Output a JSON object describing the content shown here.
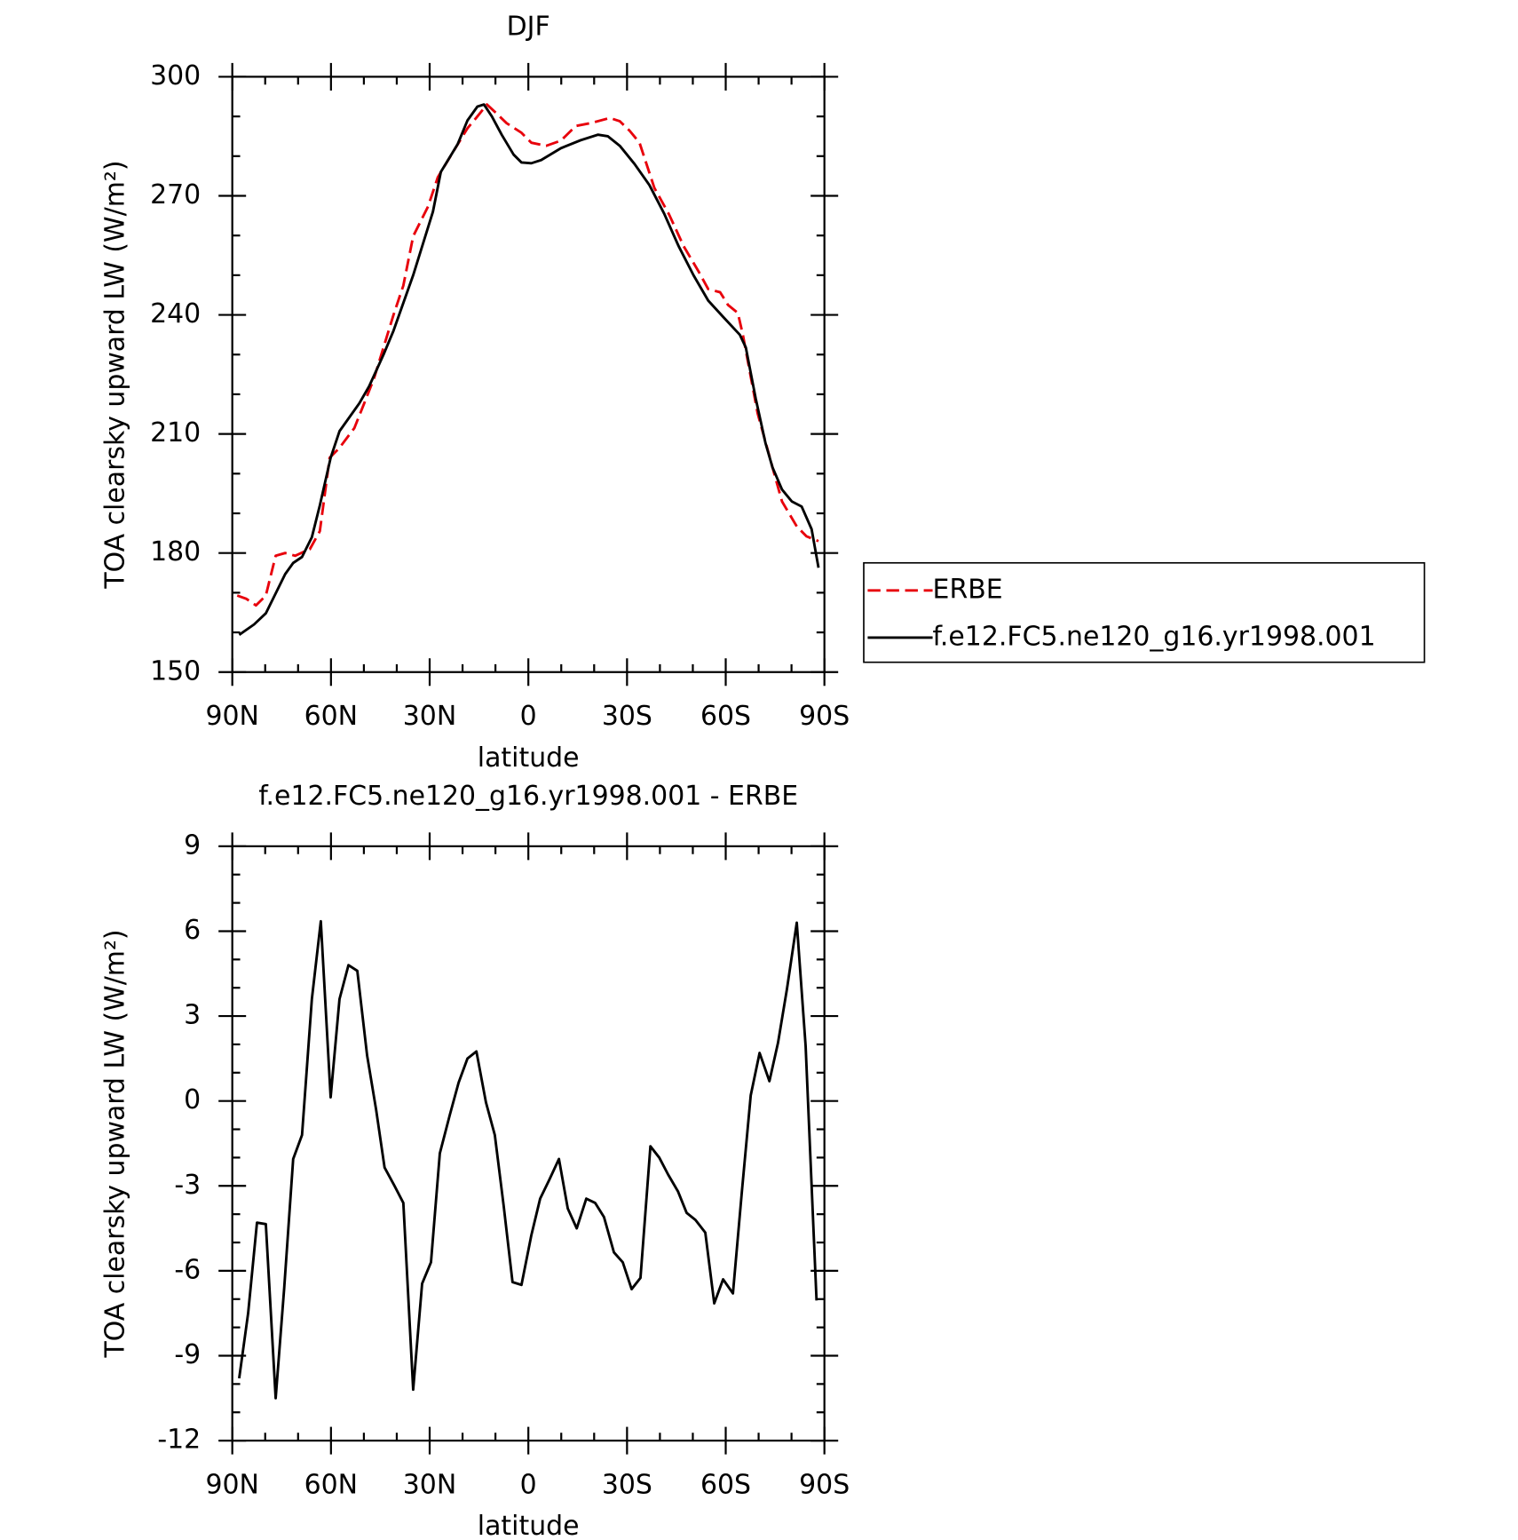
{
  "chart_data": [
    {
      "type": "line",
      "title": "DJF",
      "xlabel": "latitude",
      "ylabel": "TOA clearsky upward LW (W/m²)",
      "xlim": [
        90,
        -90
      ],
      "xticks": [
        {
          "value": 90,
          "label": "90N"
        },
        {
          "value": 60,
          "label": "60N"
        },
        {
          "value": 30,
          "label": "30N"
        },
        0,
        {
          "value": -30,
          "label": "30S"
        },
        {
          "value": -60,
          "label": "60S"
        },
        {
          "value": -90,
          "label": "90S"
        }
      ],
      "minor_xticks": [
        80,
        70,
        50,
        40,
        20,
        10,
        -10,
        -20,
        -40,
        -50,
        -70,
        -80
      ],
      "ylim": [
        150,
        300
      ],
      "yticks": [
        150,
        180,
        210,
        240,
        270,
        300
      ],
      "minor_yticks": [
        160,
        170,
        190,
        200,
        220,
        230,
        250,
        260,
        280,
        290
      ],
      "legend": "right",
      "series": [
        {
          "name": "ERBE",
          "color": "#e8000b",
          "dashed": true,
          "x": [
            88.5,
            85.8,
            82.8,
            79.8,
            76.8,
            73.9,
            70.9,
            66.4,
            63.4,
            60.4,
            57.4,
            52.9,
            49.9,
            46.9,
            41.0,
            38.0,
            35.0,
            30.5,
            27.5,
            23.0,
            18.5,
            15.5,
            12.6,
            9.6,
            6.6,
            2.1,
            -0.9,
            -5.4,
            -9.9,
            -14.4,
            -18.8,
            -24.8,
            -27.8,
            -30.8,
            -33.8,
            -38.3,
            -42.8,
            -47.2,
            -51.7,
            -54.7,
            -58.3,
            -60.7,
            -63.7,
            -65.2,
            -69.7,
            -74.2,
            -77.1,
            -81.6,
            -84.6,
            -88.2
          ],
          "values": [
            169.3,
            168.5,
            166.8,
            169.3,
            179.3,
            180,
            179.3,
            181,
            185.5,
            204,
            206.5,
            211.5,
            217.7,
            224,
            240,
            247.4,
            259.8,
            267.3,
            274.7,
            280.9,
            287,
            290,
            293,
            290.7,
            288.3,
            285.9,
            283.4,
            282.6,
            283.9,
            287.6,
            288.3,
            289.6,
            288.8,
            286.4,
            283.4,
            272,
            265.3,
            257.3,
            251,
            246.5,
            245.7,
            242.5,
            240.5,
            235,
            215.2,
            201.6,
            193,
            186.7,
            184.2,
            183
          ]
        },
        {
          "name": "f.e12.FC5.ne120_g16.yr1998.001",
          "color": "#000000",
          "dashed": false,
          "x": [
            87.9,
            83.4,
            79.8,
            73.9,
            71.5,
            68.8,
            65.8,
            63.4,
            60.1,
            57.4,
            51.4,
            48.4,
            44.0,
            41.0,
            35.0,
            29.0,
            26.6,
            21.5,
            18.5,
            15.5,
            13.5,
            11.1,
            8.1,
            4.5,
            2.1,
            -0.9,
            -3.9,
            -9.9,
            -15.9,
            -21.2,
            -24.2,
            -27.8,
            -32.3,
            -36.8,
            -41.3,
            -45.7,
            -50.2,
            -54.7,
            -59.2,
            -64.3,
            -66.1,
            -69.1,
            -72.1,
            -74.2,
            -77.1,
            -80.1,
            -83.1,
            -86.1,
            -88.2
          ],
          "values": [
            159.4,
            162,
            164.8,
            174.7,
            177.5,
            179,
            184,
            192,
            204,
            210.7,
            217.7,
            222,
            230,
            236,
            250,
            266,
            276,
            283,
            289,
            292.5,
            293,
            290,
            285.4,
            280.4,
            278.4,
            278.2,
            279,
            282,
            284,
            285.4,
            285,
            282.6,
            278,
            272.7,
            265.5,
            257.3,
            250,
            243.6,
            239.5,
            235,
            231.8,
            219,
            207.7,
            201.6,
            196,
            193,
            191.7,
            186,
            176.3
          ]
        }
      ]
    },
    {
      "type": "line",
      "title": "f.e12.FC5.ne120_g16.yr1998.001 - ERBE",
      "xlabel": "latitude",
      "ylabel": "TOA clearsky upward LW (W/m²)",
      "xlim": [
        90,
        -90
      ],
      "xticks": [
        {
          "value": 90,
          "label": "90N"
        },
        {
          "value": 60,
          "label": "60N"
        },
        {
          "value": 30,
          "label": "30N"
        },
        0,
        {
          "value": -30,
          "label": "30S"
        },
        {
          "value": -60,
          "label": "60S"
        },
        {
          "value": -90,
          "label": "90S"
        }
      ],
      "minor_xticks": [
        80,
        70,
        50,
        40,
        20,
        10,
        -10,
        -20,
        -40,
        -50,
        -70,
        -80
      ],
      "ylim": [
        -12,
        9
      ],
      "yticks": [
        -12,
        -9,
        -6,
        -3,
        0,
        3,
        6,
        9
      ],
      "minor_yticks": [
        -11,
        -10,
        -8,
        -7,
        -5,
        -4,
        -2,
        -1,
        1,
        2,
        4,
        5,
        7,
        8
      ],
      "x": [
        87.9,
        85.2,
        82.5,
        79.8,
        76.8,
        74.2,
        71.5,
        68.8,
        65.8,
        63.1,
        60.1,
        57.4,
        54.7,
        52.0,
        49.0,
        46.3,
        43.7,
        40.7,
        38.0,
        35.0,
        32.3,
        29.6,
        26.9,
        23.9,
        21.2,
        18.5,
        15.8,
        12.9,
        10.2,
        7.5,
        4.8,
        2.1,
        -0.9,
        -3.6,
        -6.3,
        -9.3,
        -12.0,
        -14.7,
        -17.6,
        -20.3,
        -23.0,
        -26.0,
        -28.7,
        -31.4,
        -34.1,
        -37.1,
        -39.8,
        -42.5,
        -45.5,
        -48.1,
        -50.8,
        -53.8,
        -56.5,
        -59.2,
        -62.2,
        -64.9,
        -67.6,
        -70.3,
        -73.3,
        -75.9,
        -78.6,
        -81.6,
        -84.3,
        -87.6
      ],
      "series": [
        {
          "color": "#000000",
          "dashed": false,
          "values": [
            -9.8,
            -7.5,
            -4.3,
            -4.35,
            -10.5,
            -6.6,
            -2.05,
            -1.2,
            3.6,
            6.35,
            0.13,
            3.6,
            4.8,
            4.6,
            1.6,
            -0.3,
            -2.35,
            -3,
            -3.6,
            -10.2,
            -6.45,
            -5.7,
            -1.85,
            -0.5,
            0.65,
            1.5,
            1.75,
            -0.05,
            -1.2,
            -3.7,
            -6.4,
            -6.5,
            -4.75,
            -3.45,
            -2.8,
            -2.05,
            -3.8,
            -4.5,
            -3.45,
            -3.6,
            -4.1,
            -5.35,
            -5.7,
            -6.65,
            -6.25,
            -1.6,
            -2,
            -2.6,
            -3.2,
            -3.95,
            -4.2,
            -4.65,
            -7.15,
            -6.3,
            -6.8,
            -3.2,
            0.2,
            1.7,
            0.7,
            2.05,
            3.95,
            6.3,
            1.95,
            -7.05
          ]
        }
      ]
    }
  ]
}
